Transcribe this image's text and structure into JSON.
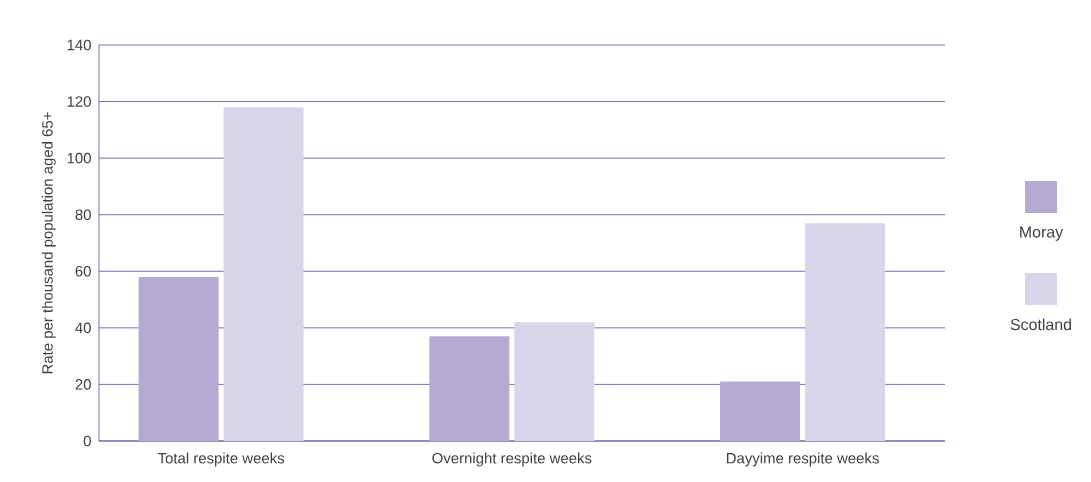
{
  "chart_data": {
    "type": "bar",
    "ylabel": "Rate per thousand population aged 65+",
    "categories": [
      "Total respite weeks",
      "Overnight respite weeks",
      "Dayyime respite weeks"
    ],
    "series": [
      {
        "name": "Moray",
        "color": "#b5abd2",
        "values": [
          58,
          37,
          21
        ]
      },
      {
        "name": "Scotland",
        "color": "#dad5ea",
        "values": [
          118,
          42,
          77
        ]
      }
    ],
    "ylim": [
      0,
      140
    ],
    "yticks": [
      0,
      20,
      40,
      60,
      80,
      100,
      120,
      140
    ],
    "grid": "y",
    "legend": "right"
  }
}
